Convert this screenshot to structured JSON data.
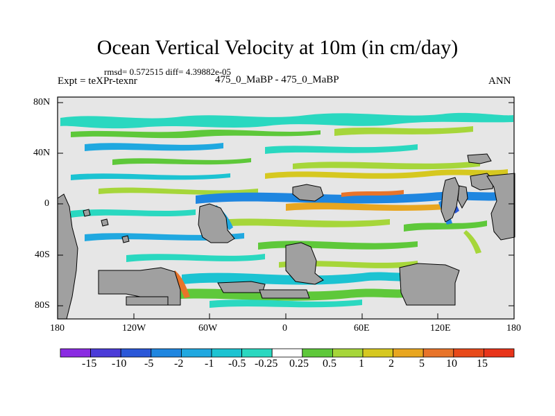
{
  "title": "Ocean Vertical Velocity at 10m (in cm/day)",
  "stats": "rmsd= 0.572515 diff= 4.39882e-05",
  "expt_label": "Expt = teXPr-texnr",
  "case_pair": "475_0_MaBP - 475_0_MaBP",
  "season": "ANN",
  "lat_labels": [
    "80N",
    "40N",
    "0",
    "40S",
    "80S"
  ],
  "lon_labels": [
    "180",
    "120W",
    "60W",
    "0",
    "60E",
    "120E",
    "180"
  ],
  "colorbar": {
    "labels": [
      "-15",
      "-10",
      "-5",
      "-2",
      "-1",
      "-0.5",
      "-0.25",
      "0.25",
      "0.5",
      "1",
      "2",
      "5",
      "10",
      "15"
    ],
    "colors": [
      "#8a2be2",
      "#4b3bd8",
      "#2a57d8",
      "#1f86e0",
      "#20a8e0",
      "#1cc3d2",
      "#2ad8c0",
      "#ffffff",
      "#5ec83a",
      "#a6d63a",
      "#d6c820",
      "#e8a620",
      "#e8742a",
      "#e84a1a",
      "#e8341a"
    ]
  },
  "colors": {
    "land": "#a0a0a0",
    "ocean_neutral": "#e6e6e6"
  }
}
